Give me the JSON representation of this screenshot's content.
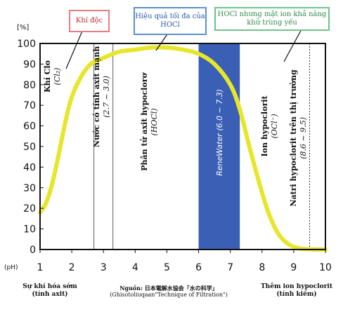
{
  "chart_data": {
    "type": "line",
    "y_unit": "[%]",
    "x_unit": "(pH)",
    "xlim": [
      1,
      10
    ],
    "ylim": [
      0,
      100
    ],
    "yticks": [
      0,
      10,
      20,
      30,
      40,
      50,
      60,
      70,
      80,
      90,
      100
    ],
    "xticks": [
      1,
      2,
      3,
      4,
      5,
      6,
      7,
      8,
      9,
      10
    ],
    "grid": false,
    "series": [
      {
        "color": "#e8e62a",
        "points": [
          [
            1.0,
            18
          ],
          [
            1.2,
            23
          ],
          [
            1.4,
            33
          ],
          [
            1.6,
            47
          ],
          [
            1.8,
            62
          ],
          [
            2.0,
            74
          ],
          [
            2.3,
            84
          ],
          [
            2.6,
            90
          ],
          [
            3.0,
            93
          ],
          [
            3.5,
            96
          ],
          [
            4.0,
            97
          ],
          [
            4.5,
            98
          ],
          [
            5.0,
            98
          ],
          [
            5.5,
            97
          ],
          [
            6.0,
            95
          ],
          [
            6.5,
            90
          ],
          [
            7.0,
            80
          ],
          [
            7.3,
            68
          ],
          [
            7.6,
            50
          ],
          [
            7.9,
            33
          ],
          [
            8.2,
            18
          ],
          [
            8.5,
            8
          ],
          [
            8.8,
            3
          ],
          [
            9.2,
            0.5
          ],
          [
            10.0,
            0
          ]
        ]
      }
    ],
    "bands": [
      {
        "x": [
          6.0,
          7.3
        ],
        "color": "#3a5fb5",
        "label": "ReneWater (6.0 ~ 7.3)"
      }
    ],
    "region_labels": [
      {
        "text": "Khí Clo",
        "sub": "(Cl₂)",
        "x": 1.45,
        "y": 84
      },
      {
        "text": "Nước có tính axit mạnh",
        "sub": "(2.7 ~ 3.0)",
        "x": 3.0,
        "y": 74
      },
      {
        "text": "Phân tử axit hypoclorơ",
        "sub": "(HOCl)",
        "x": 4.5,
        "y": 62
      },
      {
        "text": "Ion hypoclorit",
        "sub": "(OCl⁻)",
        "x": 8.3,
        "y": 60
      },
      {
        "text": "Natri hypoclorit trên thị trường",
        "sub": "(8.6 ~ 9.5)",
        "x": 9.2,
        "y": 54
      }
    ],
    "vlines": [
      {
        "x": 2.7,
        "style": "solid"
      },
      {
        "x": 3.3,
        "style": "solid"
      },
      {
        "x": 9.5,
        "style": "dotted"
      }
    ]
  },
  "callouts": {
    "toxic": "Khí độc",
    "max_effect": "Hiệu quả tối đa của HOCl",
    "weak": "HOCl nhưng mật ion khả năng khử trùng yếu"
  },
  "footer": {
    "left_line1": "Sự khí hóa sớm",
    "left_line2": "(tính axit)",
    "right_line1": "Thêm ion hypoclorit",
    "right_line2": "(tính kiềm)",
    "source_line1": "Nguồn: 日本電解水協会「水の科学」",
    "source_line2": "(Ghisotoliuqaan\"Technique of Filtration\")"
  }
}
